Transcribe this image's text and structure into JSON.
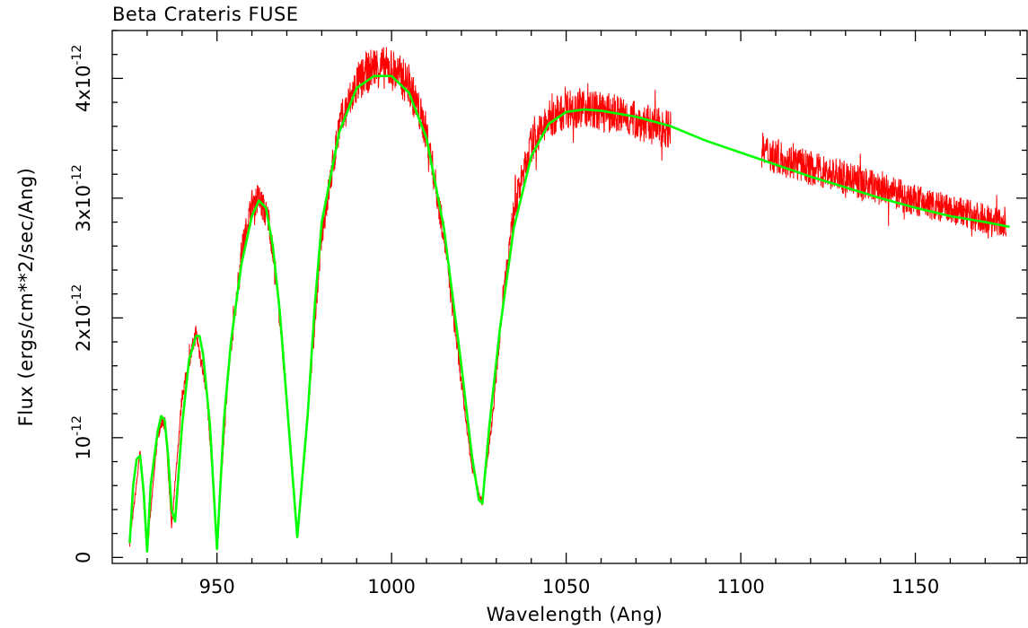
{
  "chart_data": {
    "type": "line",
    "title": "Beta Crateris FUSE",
    "xlabel": "Wavelength (Ang)",
    "ylabel": "Flux (ergs/cm**2/sec/Ang)",
    "xlim": [
      920,
      1182
    ],
    "ylim": [
      -0.05,
      4.4
    ],
    "y_unit_exponent": "-12",
    "x_ticks": [
      950,
      1000,
      1050,
      1100,
      1150
    ],
    "x_tick_labels": [
      "950",
      "1000",
      "1050",
      "1100",
      "1150"
    ],
    "y_ticks": [
      {
        "value": 0,
        "mantissa": "0",
        "exp": ""
      },
      {
        "value": 1,
        "mantissa": "10",
        "exp": "-12"
      },
      {
        "value": 2,
        "mantissa": "2x10",
        "exp": "-12"
      },
      {
        "value": 3,
        "mantissa": "3x10",
        "exp": "-12"
      },
      {
        "value": 4,
        "mantissa": "4x10",
        "exp": "-12"
      }
    ],
    "series": [
      {
        "color": "#ff0000",
        "kind": "observed spectrum (noisy)",
        "segments": [
          {
            "x": [
              925,
              928,
              930,
              933,
              935,
              937,
              940,
              944,
              947,
              950,
              953,
              957,
              960,
              962,
              965,
              968,
              973,
              976,
              980,
              985,
              990,
              995,
              1000,
              1005,
              1010,
              1015,
              1020,
              1023,
              1026,
              1029,
              1032,
              1035,
              1040,
              1045,
              1050,
              1055,
              1060,
              1065,
              1070,
              1075,
              1080
            ],
            "y": [
              0.12,
              0.88,
              0.05,
              1.02,
              1.18,
              0.25,
              1.35,
              1.88,
              1.4,
              0.1,
              1.45,
              2.55,
              2.95,
              3.0,
              2.8,
              2.0,
              0.17,
              1.2,
              2.7,
              3.6,
              3.95,
              4.1,
              4.08,
              3.95,
              3.55,
              2.7,
              1.45,
              0.75,
              0.45,
              1.2,
              2.2,
              2.9,
              3.45,
              3.65,
              3.75,
              3.76,
              3.72,
              3.7,
              3.65,
              3.6,
              3.58
            ]
          },
          {
            "x": [
              1106,
              1110,
              1120,
              1130,
              1140,
              1150,
              1160,
              1170,
              1176
            ],
            "y": [
              3.4,
              3.35,
              3.25,
              3.17,
              3.08,
              2.98,
              2.9,
              2.83,
              2.78
            ]
          }
        ]
      },
      {
        "color": "#00ff00",
        "kind": "model fit (smooth)",
        "x": [
          925,
          926,
          927,
          928,
          929,
          930,
          931,
          933,
          934,
          935,
          936,
          937,
          938,
          940,
          942,
          944,
          945,
          946,
          948,
          950,
          952,
          954,
          957,
          960,
          962,
          964,
          966,
          968,
          970,
          973,
          976,
          978,
          980,
          985,
          990,
          995,
          1000,
          1005,
          1010,
          1015,
          1020,
          1023,
          1025,
          1026,
          1028,
          1031,
          1035,
          1040,
          1045,
          1050,
          1055,
          1060,
          1070,
          1080,
          1090,
          1100,
          1110,
          1120,
          1130,
          1140,
          1150,
          1160,
          1170,
          1177
        ],
        "y": [
          0.12,
          0.6,
          0.82,
          0.85,
          0.55,
          0.05,
          0.6,
          1.05,
          1.18,
          1.15,
          0.85,
          0.4,
          0.3,
          1.1,
          1.65,
          1.85,
          1.85,
          1.7,
          1.1,
          0.07,
          1.15,
          1.8,
          2.45,
          2.85,
          2.98,
          2.92,
          2.6,
          2.05,
          1.3,
          0.17,
          1.2,
          2.1,
          2.8,
          3.55,
          3.92,
          4.02,
          4.02,
          3.88,
          3.5,
          2.75,
          1.6,
          0.85,
          0.48,
          0.45,
          1.1,
          1.9,
          2.75,
          3.35,
          3.62,
          3.72,
          3.74,
          3.73,
          3.68,
          3.6,
          3.48,
          3.38,
          3.28,
          3.18,
          3.09,
          3.0,
          2.92,
          2.85,
          2.8,
          2.76
        ]
      }
    ],
    "grid": false,
    "legend": "none"
  }
}
